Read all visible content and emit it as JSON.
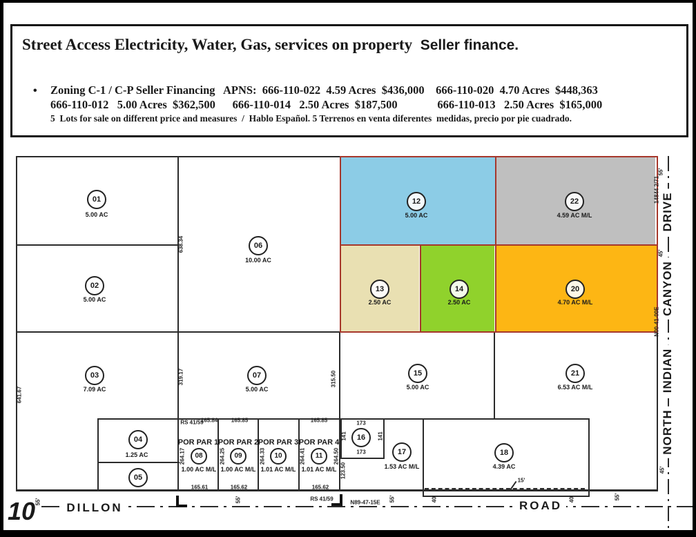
{
  "header": {
    "line1_main": "Street Access Electricity, Water, Gas, services on property",
    "line1_sub": "  Seller finance.",
    "bullet": "•",
    "apn_line1": "Zoning C-1 / C-P Seller Financing   APNS:  666-110-022  4.59 Acres  $436,000    666-110-020  4.70 Acres  $448,363",
    "apn_line2": "666-110-012   5.00 Acres  $362,500      666-110-014   2.50 Acres  $187,500              666-110-013   2.50 Acres  $165,000",
    "line3": "5  Lots for sale on different price and measures  /  Hablo Español. 5 Terrenos en venta diferentes  medidas, precio por pie cuadrado."
  },
  "roads": {
    "dillon": "DILLON",
    "road": "ROAD",
    "drive": "DRIVE",
    "canyon": "CANYON",
    "indian": "INDIAN",
    "north": "NORTH",
    "section_number": "10"
  },
  "colors": {
    "lot12_blue": "#8cccE6",
    "lot22_gray": "#bfbfbf",
    "lot13_tan": "#e9e0b2",
    "lot14_green": "#90d22c",
    "lot20_orange": "#fdb614",
    "boundary_red": "#a6372b"
  },
  "parcels": [
    {
      "num": "01",
      "acreage": "5.00 AC"
    },
    {
      "num": "02",
      "acreage": "5.00 AC"
    },
    {
      "num": "03",
      "acreage": "7.09 AC"
    },
    {
      "num": "04",
      "acreage": "1.25 AC"
    },
    {
      "num": "05"
    },
    {
      "num": "06",
      "acreage": "10.00 AC"
    },
    {
      "num": "07",
      "acreage": "5.00 AC"
    },
    {
      "num": "08",
      "por": "POR PAR 1",
      "acreage": "1.00 AC M/L"
    },
    {
      "num": "09",
      "por": "POR PAR 2",
      "acreage": "1.00 AC M/L"
    },
    {
      "num": "10",
      "por": "POR PAR 3",
      "acreage": "1.01 AC M/L"
    },
    {
      "num": "11",
      "por": "POR PAR 4",
      "acreage": "1.01 AC M/L"
    },
    {
      "num": "12",
      "acreage": "5.00 AC"
    },
    {
      "num": "13",
      "acreage": "2.50 AC"
    },
    {
      "num": "14",
      "acreage": "2.50 AC"
    },
    {
      "num": "15",
      "acreage": "5.00 AC"
    },
    {
      "num": "16"
    },
    {
      "num": "17",
      "acreage": "1.53 AC M/L"
    },
    {
      "num": "18",
      "acreage": "4.39 AC"
    },
    {
      "num": "20",
      "acreage": "4.70 AC M/L"
    },
    {
      "num": "21",
      "acreage": "6.53 AC M/L"
    },
    {
      "num": "22",
      "acreage": "4.59 AC M/L"
    }
  ],
  "labels": [
    {
      "id": "m638",
      "text": "638.34"
    },
    {
      "id": "m319",
      "text": "319.17"
    },
    {
      "id": "m315",
      "text": "315.50"
    },
    {
      "id": "m641",
      "text": "641.67"
    },
    {
      "id": "m12350",
      "text": "123.50"
    },
    {
      "id": "m26417",
      "text": "264.17"
    },
    {
      "id": "m26425",
      "text": "264.25"
    },
    {
      "id": "m26433",
      "text": "264.33"
    },
    {
      "id": "m26441",
      "text": "264.41"
    },
    {
      "id": "m26450",
      "text": "264.50"
    },
    {
      "id": "m141a",
      "text": "141"
    },
    {
      "id": "m141b",
      "text": "141"
    },
    {
      "id": "m173a",
      "text": "173"
    },
    {
      "id": "m173b",
      "text": "173"
    },
    {
      "id": "mrs1",
      "text": "RS 41/59"
    },
    {
      "id": "m16584",
      "text": "165.84"
    },
    {
      "id": "m16585a",
      "text": "165.85"
    },
    {
      "id": "m16585b",
      "text": "165.85"
    },
    {
      "id": "m16561",
      "text": "165.61"
    },
    {
      "id": "m16562a",
      "text": "165.62"
    },
    {
      "id": "m16562b",
      "text": "165.62"
    },
    {
      "id": "m15ft",
      "text": "15'"
    },
    {
      "id": "r55a",
      "text": "55'"
    },
    {
      "id": "r14844",
      "text": "14844 2/71"
    },
    {
      "id": "r45a",
      "text": "45'"
    },
    {
      "id": "rn00",
      "text": "N00-41-00E"
    },
    {
      "id": "r45b",
      "text": "45'"
    },
    {
      "id": "b55a",
      "text": "55'"
    },
    {
      "id": "b55b",
      "text": "55'"
    },
    {
      "id": "brs",
      "text": "RS 41/59"
    },
    {
      "id": "bn89",
      "text": "N89-47-15E"
    },
    {
      "id": "b55c",
      "text": "55'"
    },
    {
      "id": "b40a",
      "text": "40'"
    },
    {
      "id": "b40b",
      "text": "40'"
    },
    {
      "id": "b55d",
      "text": "55'"
    }
  ]
}
